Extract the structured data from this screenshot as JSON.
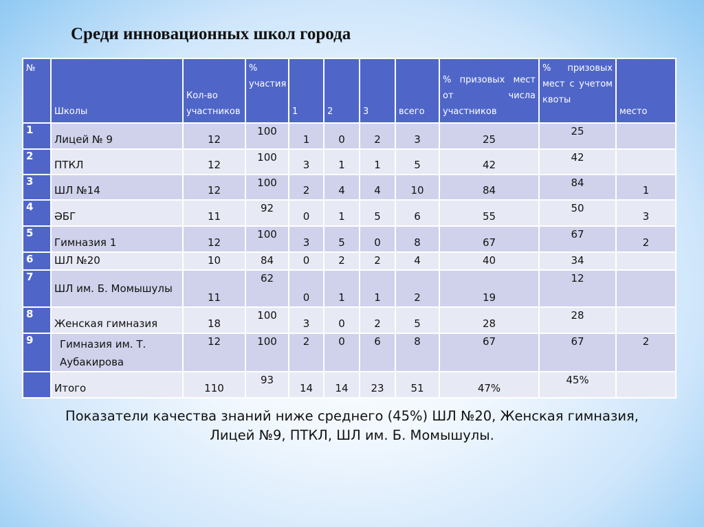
{
  "title": "Среди инновационных школ города",
  "table": {
    "headers": [
      "№",
      "Школы",
      "Кол-во участников",
      "% участия",
      "1",
      "2",
      "3",
      "всего",
      "% призовых мест от числа участников",
      "% призовых мест с учетом квоты",
      "место"
    ],
    "rows": [
      [
        "1",
        "Лицей № 9",
        "12",
        "100",
        "1",
        "0",
        "2",
        "3",
        "25",
        "25",
        ""
      ],
      [
        "2",
        "ПТКЛ",
        "12",
        "100",
        "3",
        "1",
        "1",
        "5",
        "42",
        "42",
        ""
      ],
      [
        "3",
        "ШЛ №14",
        "12",
        "100",
        "2",
        "4",
        "4",
        "10",
        "84",
        "84",
        "1"
      ],
      [
        "4",
        "ӘБГ",
        "11",
        "92",
        "0",
        "1",
        "5",
        "6",
        "55",
        "50",
        "3"
      ],
      [
        "5",
        "Гимназия 1",
        "12",
        "100",
        "3",
        "5",
        "0",
        "8",
        "67",
        "67",
        "2"
      ],
      [
        "6",
        "ШЛ №20",
        "10",
        "84",
        "0",
        "2",
        "2",
        "4",
        "40",
        "34",
        ""
      ],
      [
        "7",
        "ШЛ им. Б. Момышулы",
        "11",
        "62",
        "0",
        "1",
        "1",
        "2",
        "19",
        "12",
        ""
      ],
      [
        "8",
        "Женская гимназия",
        "18",
        "100",
        "3",
        "0",
        "2",
        "5",
        "28",
        "28",
        ""
      ],
      [
        "9",
        "Гимназия им. Т. Аубакирова",
        "12",
        "100",
        "2",
        "0",
        "6",
        "8",
        "67",
        "67",
        "2"
      ],
      [
        "",
        "Итого",
        "110",
        "93",
        "14",
        "14",
        "23",
        "51",
        "47%",
        "45%",
        ""
      ]
    ]
  },
  "footer": "Показатели качества знаний ниже среднего (45%) ШЛ №20, Женская гимназия, Лицей №9, ПТКЛ, ШЛ им. Б. Момышулы.",
  "colors": {
    "header": "#4f66c8",
    "row_dark": "#cfd2ea",
    "row_light": "#e7e9f4"
  }
}
